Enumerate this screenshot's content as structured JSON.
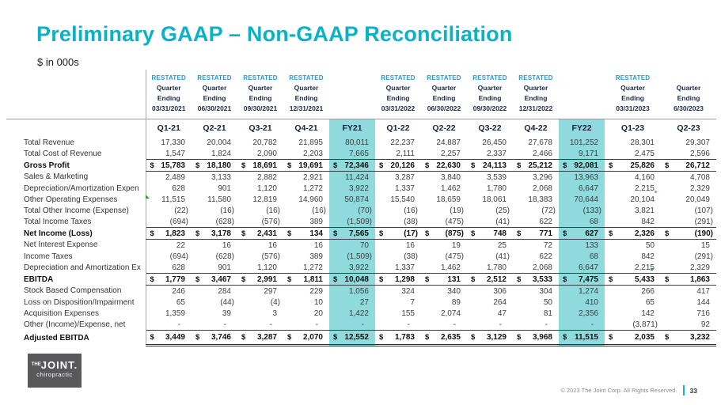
{
  "slide": {
    "title": "Preliminary GAAP – Non-GAAP Reconciliation",
    "subtitle": "$ in 000s"
  },
  "logo": {
    "the": "THE",
    "joint": "JOINT.",
    "chiropractic": "chiropractic"
  },
  "footer": {
    "copyright": "© 2023 The Joint Corp. All Rights Reserved.",
    "page_number": "33"
  },
  "colors": {
    "title_teal": "#0cb1c3",
    "restated_blue": "#2e96d2",
    "column_label_navy": "#1b2947",
    "fy_highlight_teal": "#8edadd",
    "footer_divider_teal": "#19b4c6",
    "logo_background": "#59595c"
  },
  "table": {
    "columns": [
      {
        "label": "Q1-21",
        "highlight": false,
        "header": [
          "RESTATED",
          "Quarter",
          "Ending",
          "03/31/2021"
        ]
      },
      {
        "label": "Q2-21",
        "highlight": false,
        "header": [
          "RESTATED",
          "Quarter",
          "Ending",
          "06/30/2021"
        ]
      },
      {
        "label": "Q3-21",
        "highlight": false,
        "header": [
          "RESTATED",
          "Quarter",
          "Ending",
          "09/30/2021"
        ]
      },
      {
        "label": "Q4-21",
        "highlight": false,
        "header": [
          "RESTATED",
          "Quarter",
          "Ending",
          "12/31/2021"
        ]
      },
      {
        "label": "FY21",
        "highlight": true,
        "header": []
      },
      {
        "label": "Q1-22",
        "highlight": false,
        "header": [
          "RESTATED",
          "Quarter",
          "Ending",
          "03/31/2022"
        ]
      },
      {
        "label": "Q2-22",
        "highlight": false,
        "header": [
          "RESTATED",
          "Quarter",
          "Ending",
          "06/30/2022"
        ]
      },
      {
        "label": "Q3-22",
        "highlight": false,
        "header": [
          "RESTATED",
          "Quarter",
          "Ending",
          "09/30/2022"
        ]
      },
      {
        "label": "Q4-22",
        "highlight": false,
        "header": [
          "RESTATED",
          "Quarter",
          "Ending",
          "12/31/2022"
        ]
      },
      {
        "label": "FY22",
        "highlight": true,
        "header": []
      },
      {
        "label": "Q1-23",
        "highlight": false,
        "header": [
          "RESTATED",
          "Quarter",
          "Ending",
          "03/31/2023"
        ]
      },
      {
        "label": "Q2-23",
        "highlight": false,
        "header": [
          "",
          "Quarter",
          "Ending",
          "6/30/2023"
        ]
      }
    ],
    "rows": [
      {
        "label": "Total Revenue",
        "style": "plain",
        "values": [
          "17,330",
          "20,004",
          "20,782",
          "21,895",
          "80,011",
          "22,237",
          "24,887",
          "26,450",
          "27,678",
          "101,252",
          "28,301",
          "29,307"
        ]
      },
      {
        "label": "Total Cost of Revenue",
        "style": "plain",
        "values": [
          "1,547",
          "1,824",
          "2,090",
          "2,203",
          "7,665",
          "2,111",
          "2,257",
          "2,337",
          "2,466",
          "9,171",
          "2,475",
          "2,596"
        ]
      },
      {
        "label": "Gross Profit",
        "style": "sum",
        "values": [
          "15,783",
          "18,180",
          "18,691",
          "19,691",
          "72,346",
          "20,126",
          "22,630",
          "24,113",
          "25,212",
          "92,081",
          "25,826",
          "26,712"
        ]
      },
      {
        "label": "Sales & Marketing",
        "style": "plain",
        "values": [
          "2,489",
          "3,133",
          "2,882",
          "2,921",
          "11,424",
          "3,287",
          "3,840",
          "3,539",
          "3,296",
          "13,963",
          "4,160",
          "4,708"
        ]
      },
      {
        "label": "Depreciation/Amortization Expen",
        "style": "plain",
        "values": [
          "628",
          "901",
          "1,120",
          "1,272",
          "3,922",
          "1,337",
          "1,462",
          "1,780",
          "2,068",
          "6,647",
          "2,215",
          "2,329"
        ]
      },
      {
        "label": "Other Operating Expenses",
        "style": "plain",
        "values": [
          "11,515",
          "11,580",
          "12,819",
          "14,960",
          "50,874",
          "15,540",
          "18,659",
          "18,061",
          "18,383",
          "70,644",
          "20,104",
          "20,049"
        ]
      },
      {
        "label": "Total Other Income (Expense)",
        "style": "plain",
        "values": [
          "(22)",
          "(16)",
          "(16)",
          "(16)",
          "(70)",
          "(16)",
          "(19)",
          "(25)",
          "(72)",
          "(133)",
          "3,821",
          "(107)"
        ]
      },
      {
        "label": "Total Income Taxes",
        "style": "plain",
        "values": [
          "(694)",
          "(628)",
          "(576)",
          "389",
          "(1,509)",
          "(38)",
          "(475)",
          "(41)",
          "622",
          "68",
          "842",
          "(291)"
        ]
      },
      {
        "label": "Net Income (Loss)",
        "style": "sum",
        "values": [
          "1,823",
          "3,178",
          "2,431",
          "134",
          "7,565",
          "(17)",
          "(875)",
          "748",
          "771",
          "627",
          "2,326",
          "(190)"
        ]
      },
      {
        "label": "Net Interest Expense",
        "style": "plain",
        "values": [
          "22",
          "16",
          "16",
          "16",
          "70",
          "16",
          "19",
          "25",
          "72",
          "133",
          "50",
          "15"
        ]
      },
      {
        "label": "Income Taxes",
        "style": "plain",
        "values": [
          "(694)",
          "(628)",
          "(576)",
          "389",
          "(1,509)",
          "(38)",
          "(475)",
          "(41)",
          "622",
          "68",
          "842",
          "(291)"
        ]
      },
      {
        "label": "Depreciation and Amortization Ex",
        "style": "plain",
        "values": [
          "628",
          "901",
          "1,120",
          "1,272",
          "3,922",
          "1,337",
          "1,462",
          "1,780",
          "2,068",
          "6,647",
          "2,215",
          "2,329"
        ]
      },
      {
        "label": "EBITDA",
        "style": "sum",
        "values": [
          "1,779",
          "3,467",
          "2,991",
          "1,811",
          "10,048",
          "1,298",
          "131",
          "2,512",
          "3,533",
          "7,475",
          "5,433",
          "1,863"
        ]
      },
      {
        "label": "Stock Based Compensation",
        "style": "plain",
        "values": [
          "246",
          "284",
          "297",
          "229",
          "1,056",
          "324",
          "340",
          "306",
          "304",
          "1,274",
          "266",
          "417"
        ]
      },
      {
        "label": "Loss on Disposition/Impairment",
        "style": "plain",
        "values": [
          "65",
          "(44)",
          "(4)",
          "10",
          "27",
          "7",
          "89",
          "264",
          "50",
          "410",
          "65",
          "144"
        ]
      },
      {
        "label": "Acquisition Expenses",
        "style": "plain",
        "values": [
          "1,359",
          "39",
          "3",
          "20",
          "1,422",
          "155",
          "2,074",
          "47",
          "81",
          "2,356",
          "142",
          "716"
        ]
      },
      {
        "label": "Other (Income)/Expense, net",
        "style": "plain",
        "values": [
          "-",
          "-",
          "-",
          "-",
          "-",
          "-",
          "-",
          "-",
          "-",
          "-",
          "(3,871)",
          "92"
        ]
      },
      {
        "label": "Adjusted EBITDA",
        "style": "grand",
        "values": [
          "3,449",
          "3,746",
          "3,287",
          "2,070",
          "12,552",
          "1,783",
          "2,635",
          "3,129",
          "3,968",
          "11,515",
          "2,035",
          "3,232"
        ]
      }
    ]
  }
}
